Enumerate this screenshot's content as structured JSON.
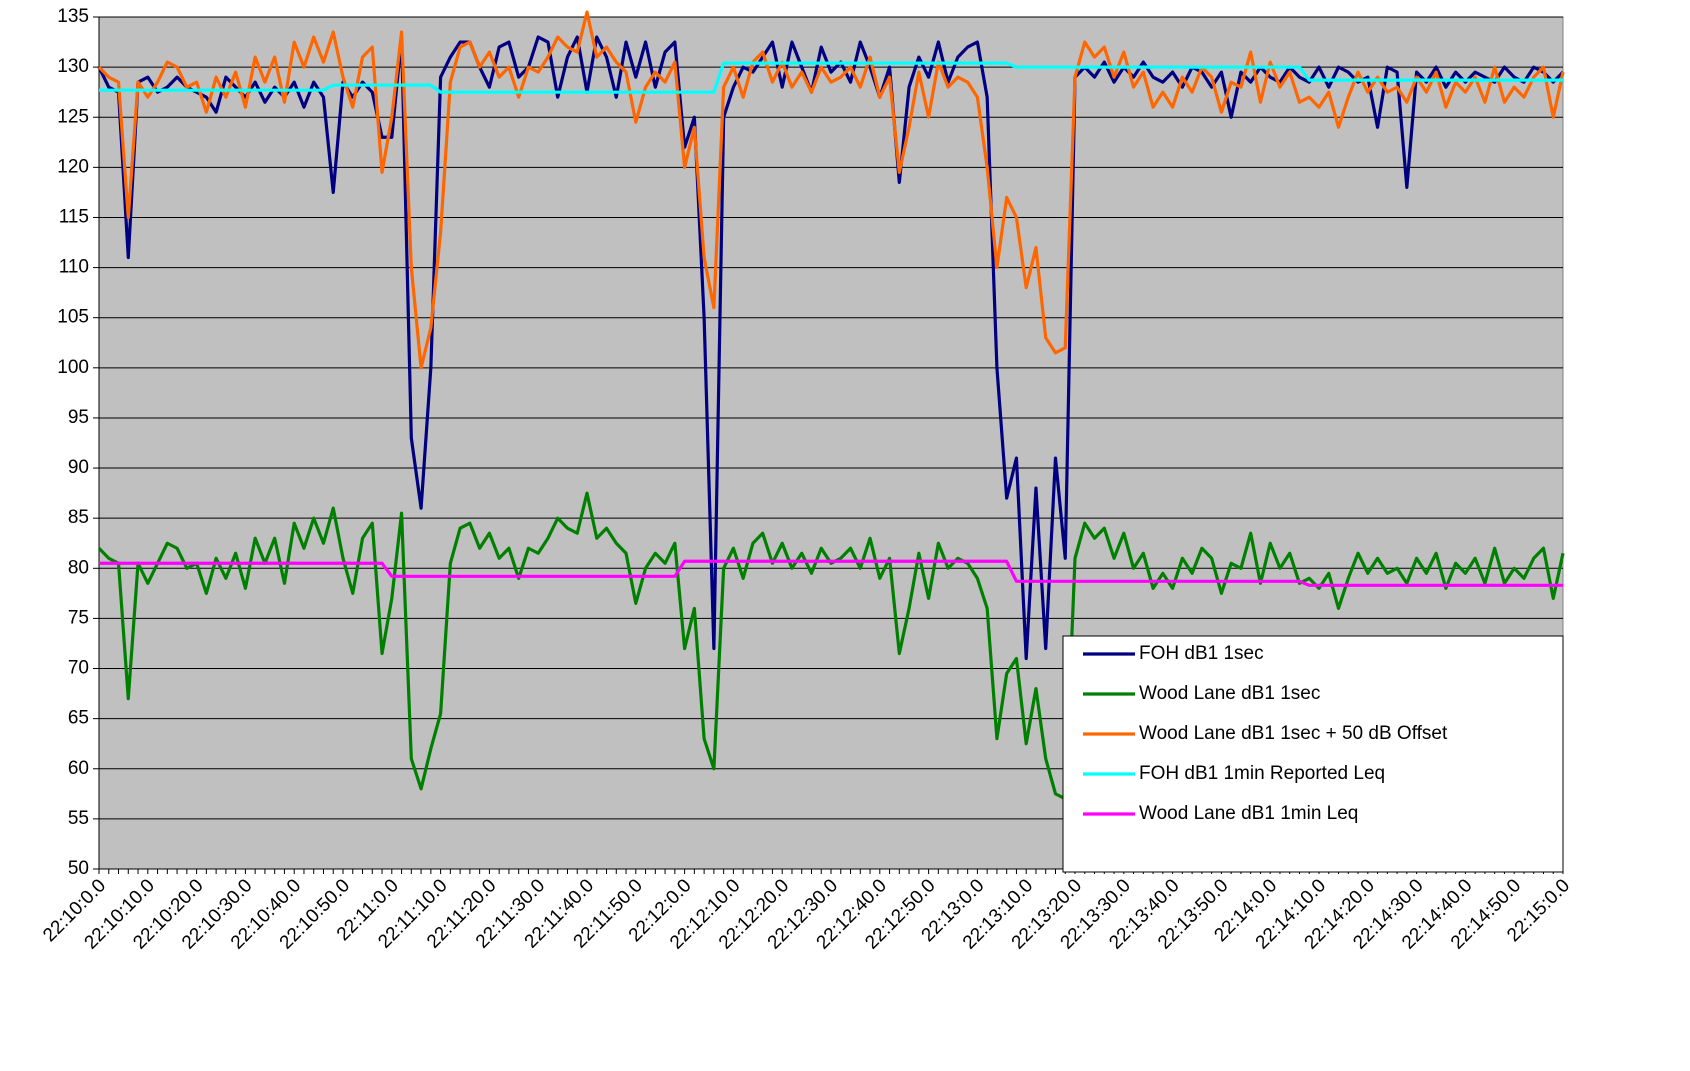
{
  "chart_data": {
    "type": "line",
    "categories": [
      "22:10:0.0",
      null,
      null,
      null,
      null,
      "22:10:10.0",
      null,
      null,
      null,
      null,
      "22:10:20.0",
      null,
      null,
      null,
      null,
      "22:10:30.0",
      null,
      null,
      null,
      null,
      "22:10:40.0",
      null,
      null,
      null,
      null,
      "22:10:50.0",
      null,
      null,
      null,
      null,
      "22:11:0.0",
      null,
      null,
      null,
      null,
      "22:11:10.0",
      null,
      null,
      null,
      null,
      "22:11:20.0",
      null,
      null,
      null,
      null,
      "22:11:30.0",
      null,
      null,
      null,
      null,
      "22:11:40.0",
      null,
      null,
      null,
      null,
      "22:11:50.0",
      null,
      null,
      null,
      null,
      "22:12:0.0",
      null,
      null,
      null,
      null,
      "22:12:10.0",
      null,
      null,
      null,
      null,
      "22:12:20.0",
      null,
      null,
      null,
      null,
      "22:12:30.0",
      null,
      null,
      null,
      null,
      "22:12:40.0",
      null,
      null,
      null,
      null,
      "22:12:50.0",
      null,
      null,
      null,
      null,
      "22:13:0.0",
      null,
      null,
      null,
      null,
      "22:13:10.0",
      null,
      null,
      null,
      null,
      "22:13:20.0",
      null,
      null,
      null,
      null,
      "22:13:30.0",
      null,
      null,
      null,
      null,
      "22:13:40.0",
      null,
      null,
      null,
      null,
      "22:13:50.0",
      null,
      null,
      null,
      null,
      "22:14:0.0",
      null,
      null,
      null,
      null,
      "22:14:10.0",
      null,
      null,
      null,
      null,
      "22:14:20.0",
      null,
      null,
      null,
      null,
      "22:14:30.0",
      null,
      null,
      null,
      null,
      "22:14:40.0",
      null,
      null,
      null,
      null,
      "22:14:50.0",
      null,
      null,
      null,
      null,
      "22:15:0.0"
    ],
    "series": [
      {
        "name": "FOH dB1 1sec",
        "color": "#000080",
        "values": [
          130,
          128,
          127.5,
          111,
          128.5,
          129,
          127.5,
          128,
          129,
          128,
          127.5,
          127,
          125.5,
          129,
          128,
          127,
          128.5,
          126.5,
          128,
          127,
          128.5,
          126,
          128.5,
          127,
          117.5,
          128.5,
          127,
          128.5,
          127.5,
          123,
          123,
          133,
          93,
          86,
          100,
          129,
          131,
          132.5,
          132.5,
          130,
          128,
          132,
          132.5,
          129,
          130,
          133,
          132.5,
          127,
          131,
          133,
          127.5,
          133,
          131,
          127,
          132.5,
          129,
          132.5,
          128,
          131.5,
          132.5,
          122,
          125,
          105,
          72,
          125,
          128,
          130,
          129.5,
          131,
          132.5,
          128,
          132.5,
          130,
          127.5,
          132,
          129.5,
          130.5,
          128.5,
          132.5,
          130,
          127,
          130,
          118.5,
          128,
          131,
          129,
          132.5,
          128.5,
          131,
          132,
          132.5,
          127,
          100,
          87,
          91,
          71,
          88,
          72,
          91,
          81,
          129,
          130,
          129,
          130.5,
          128.5,
          130,
          129,
          130.5,
          129,
          128.5,
          129.5,
          128,
          130,
          129.5,
          128,
          129.5,
          125,
          129.5,
          128.5,
          130,
          129,
          128.5,
          130,
          129,
          128.5,
          130,
          128,
          130,
          129.5,
          128.5,
          129,
          124,
          130,
          129.5,
          118,
          129.5,
          128.5,
          130,
          128,
          129.5,
          128.5,
          129.5,
          129,
          128.5,
          130,
          129,
          128.5,
          130,
          129.5,
          128.5,
          129.5
        ]
      },
      {
        "name": "Wood Lane dB1 1sec",
        "color": "#008000",
        "values": [
          82,
          81,
          80.5,
          67,
          80.5,
          78.5,
          80.5,
          82.5,
          82,
          80,
          80.5,
          77.5,
          81,
          79,
          81.5,
          78,
          83,
          80.5,
          83,
          78.5,
          84.5,
          82,
          85,
          82.5,
          86,
          81,
          77.5,
          83,
          84.5,
          71.5,
          77,
          85.5,
          61,
          58,
          62,
          65.5,
          80.5,
          84,
          84.5,
          82,
          83.5,
          81,
          82,
          79,
          82,
          81.5,
          83,
          85,
          84,
          83.5,
          87.5,
          83,
          84,
          82.5,
          81.5,
          76.5,
          80,
          81.5,
          80.5,
          82.5,
          72,
          76,
          63,
          60,
          80,
          82,
          79,
          82.5,
          83.5,
          80.5,
          82.5,
          80,
          81.5,
          79.5,
          82,
          80.5,
          81,
          82,
          80,
          83,
          79,
          81,
          71.5,
          76,
          81.5,
          77,
          82.5,
          80,
          81,
          80.5,
          79,
          76,
          63,
          69.5,
          71,
          62.5,
          68,
          61,
          57.5,
          57,
          81,
          84.5,
          83,
          84,
          81,
          83.5,
          80,
          81.5,
          78,
          79.5,
          78,
          81,
          79.5,
          82,
          81,
          77.5,
          80.5,
          80,
          83.5,
          78.5,
          82.5,
          80,
          81.5,
          78.5,
          79,
          78,
          79.5,
          76,
          79,
          81.5,
          79.5,
          81,
          79.5,
          80,
          78.5,
          81,
          79.5,
          81.5,
          78,
          80.5,
          79.5,
          81,
          78.5,
          82,
          78.5,
          80,
          79,
          81,
          82,
          77,
          81.5
        ]
      },
      {
        "name": "Wood Lane dB1 1sec + 50 dB Offset",
        "color": "#ff6600",
        "values": [
          130,
          129,
          128.5,
          115,
          128.5,
          127,
          128.5,
          130.5,
          130,
          128,
          128.5,
          125.5,
          129,
          127,
          129.5,
          126,
          131,
          128.5,
          131,
          126.5,
          132.5,
          130,
          133,
          130.5,
          133.5,
          129,
          126,
          131,
          132,
          119.5,
          125,
          133.5,
          110,
          100,
          104,
          113.5,
          128.5,
          132,
          132.5,
          130,
          131.5,
          129,
          130,
          127,
          130,
          129.5,
          131,
          133,
          132,
          131.5,
          135.5,
          131,
          132,
          130.5,
          129.5,
          124.5,
          128,
          129.5,
          128.5,
          130.5,
          120,
          124,
          111,
          106,
          128,
          130,
          127,
          130.5,
          131.5,
          128.5,
          130.5,
          128,
          129.5,
          127.5,
          130,
          128.5,
          129,
          130,
          128,
          131,
          127,
          129,
          119.5,
          124,
          129.5,
          125,
          130.5,
          128,
          129,
          128.5,
          127,
          120,
          110,
          117,
          115,
          108,
          112,
          103,
          101.5,
          102,
          129,
          132.5,
          131,
          132,
          129,
          131.5,
          128,
          129.5,
          126,
          127.5,
          126,
          129,
          127.5,
          130,
          129,
          125.5,
          128.5,
          128,
          131.5,
          126.5,
          130.5,
          128,
          129.5,
          126.5,
          127,
          126,
          127.5,
          124,
          127,
          129.5,
          127.5,
          129,
          127.5,
          128,
          126.5,
          129,
          127.5,
          129.5,
          126,
          128.5,
          127.5,
          129,
          126.5,
          130,
          126.5,
          128,
          127,
          129,
          130,
          125,
          129.5
        ]
      },
      {
        "name": "FOH dB1 1min Reported Leq",
        "color": "#00ffff",
        "values": [
          127.7,
          127.7,
          127.7,
          127.7,
          127.7,
          127.7,
          127.7,
          127.7,
          127.7,
          127.7,
          127.7,
          127.7,
          127.7,
          127.7,
          127.7,
          127.7,
          127.7,
          127.7,
          127.7,
          127.7,
          127.7,
          127.7,
          127.7,
          127.7,
          128.2,
          128.2,
          128.2,
          128.2,
          128.2,
          128.2,
          128.2,
          128.2,
          128.2,
          128.2,
          128.2,
          127.5,
          127.5,
          127.5,
          127.5,
          127.5,
          127.5,
          127.5,
          127.5,
          127.5,
          127.5,
          127.5,
          127.5,
          127.5,
          127.5,
          127.5,
          127.5,
          127.5,
          127.5,
          127.5,
          127.5,
          127.5,
          127.5,
          127.5,
          127.5,
          127.5,
          127.5,
          127.5,
          127.5,
          127.5,
          130.4,
          130.4,
          130.4,
          130.4,
          130.4,
          130.4,
          130.4,
          130.4,
          130.4,
          130.4,
          130.4,
          130.4,
          130.4,
          130.4,
          130.4,
          130.4,
          130.4,
          130.4,
          130.4,
          130.4,
          130.4,
          130.4,
          130.4,
          130.4,
          130.4,
          130.4,
          130.4,
          130.4,
          130.4,
          130.4,
          130.0,
          130.0,
          130.0,
          130.0,
          130.0,
          130.0,
          130.0,
          130.0,
          130.0,
          130.0,
          130.0,
          130.0,
          130.0,
          130.0,
          130.0,
          130.0,
          130.0,
          130.0,
          130.0,
          130.0,
          130.0,
          130.0,
          130.0,
          130.0,
          130.0,
          130.0,
          130.0,
          130.0,
          130.0,
          130.0,
          128.7,
          128.7,
          128.7,
          128.7,
          128.7,
          128.7,
          128.7,
          128.7,
          128.7,
          128.7,
          128.7,
          128.7,
          128.7,
          128.7,
          128.7,
          128.7,
          128.7,
          128.7,
          128.7,
          128.7,
          128.7,
          128.7,
          128.7,
          128.7,
          128.7,
          128.7,
          128.7
        ]
      },
      {
        "name": "Wood Lane dB1 1min Leq",
        "color": "#ff00ff",
        "values": [
          80.5,
          80.5,
          80.5,
          80.5,
          80.5,
          80.5,
          80.5,
          80.5,
          80.5,
          80.5,
          80.5,
          80.5,
          80.5,
          80.5,
          80.5,
          80.5,
          80.5,
          80.5,
          80.5,
          80.5,
          80.5,
          80.5,
          80.5,
          80.5,
          80.5,
          80.5,
          80.5,
          80.5,
          80.5,
          80.5,
          79.2,
          79.2,
          79.2,
          79.2,
          79.2,
          79.2,
          79.2,
          79.2,
          79.2,
          79.2,
          79.2,
          79.2,
          79.2,
          79.2,
          79.2,
          79.2,
          79.2,
          79.2,
          79.2,
          79.2,
          79.2,
          79.2,
          79.2,
          79.2,
          79.2,
          79.2,
          79.2,
          79.2,
          79.2,
          79.2,
          80.7,
          80.7,
          80.7,
          80.7,
          80.7,
          80.7,
          80.7,
          80.7,
          80.7,
          80.7,
          80.7,
          80.7,
          80.7,
          80.7,
          80.7,
          80.7,
          80.7,
          80.7,
          80.7,
          80.7,
          80.7,
          80.7,
          80.7,
          80.7,
          80.7,
          80.7,
          80.7,
          80.7,
          80.7,
          80.7,
          80.7,
          80.7,
          80.7,
          80.7,
          78.7,
          78.7,
          78.7,
          78.7,
          78.7,
          78.7,
          78.7,
          78.7,
          78.7,
          78.7,
          78.7,
          78.7,
          78.7,
          78.7,
          78.7,
          78.7,
          78.7,
          78.7,
          78.7,
          78.7,
          78.7,
          78.7,
          78.7,
          78.7,
          78.7,
          78.7,
          78.7,
          78.7,
          78.7,
          78.7,
          78.3,
          78.3,
          78.3,
          78.3,
          78.3,
          78.3,
          78.3,
          78.3,
          78.3,
          78.3,
          78.3,
          78.3,
          78.3,
          78.3,
          78.3,
          78.3,
          78.3,
          78.3,
          78.3,
          78.3,
          78.3,
          78.3,
          78.3,
          78.3,
          78.3,
          78.3,
          78.3
        ]
      }
    ],
    "ylim": [
      50,
      135
    ],
    "yticks": [
      50,
      55,
      60,
      65,
      70,
      75,
      80,
      85,
      90,
      95,
      100,
      105,
      110,
      115,
      120,
      125,
      130,
      135
    ],
    "grid": true,
    "legend": "lower-right",
    "plot_background": "#c0c0c0"
  }
}
